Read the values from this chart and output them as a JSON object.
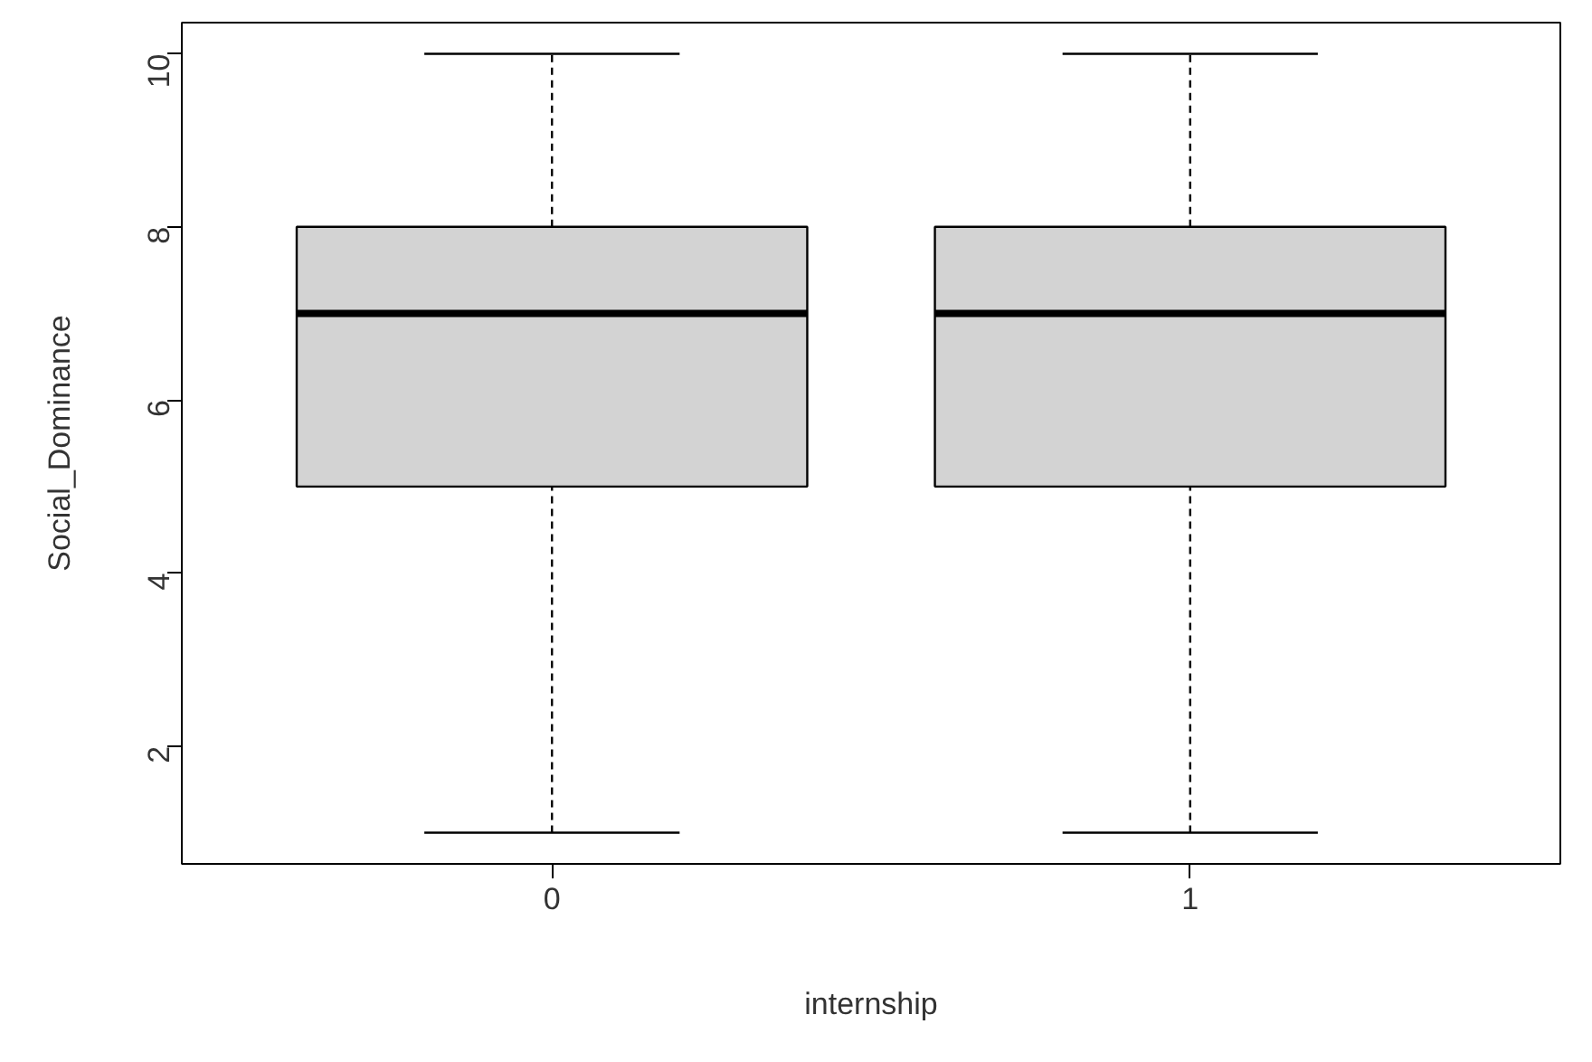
{
  "chart_data": {
    "type": "box",
    "xlabel": "internship",
    "ylabel": "Social_Dominance",
    "categories": [
      "0",
      "1"
    ],
    "boxes": [
      {
        "low": 1,
        "q1": 5,
        "median": 7,
        "q3": 8,
        "high": 10
      },
      {
        "low": 1,
        "q1": 5,
        "median": 7,
        "q3": 8,
        "high": 10
      }
    ],
    "color": "#d3d3d3",
    "ylim": [
      0.64,
      10.36
    ],
    "yticks": [
      2,
      4,
      6,
      8,
      10
    ],
    "grid": false
  }
}
